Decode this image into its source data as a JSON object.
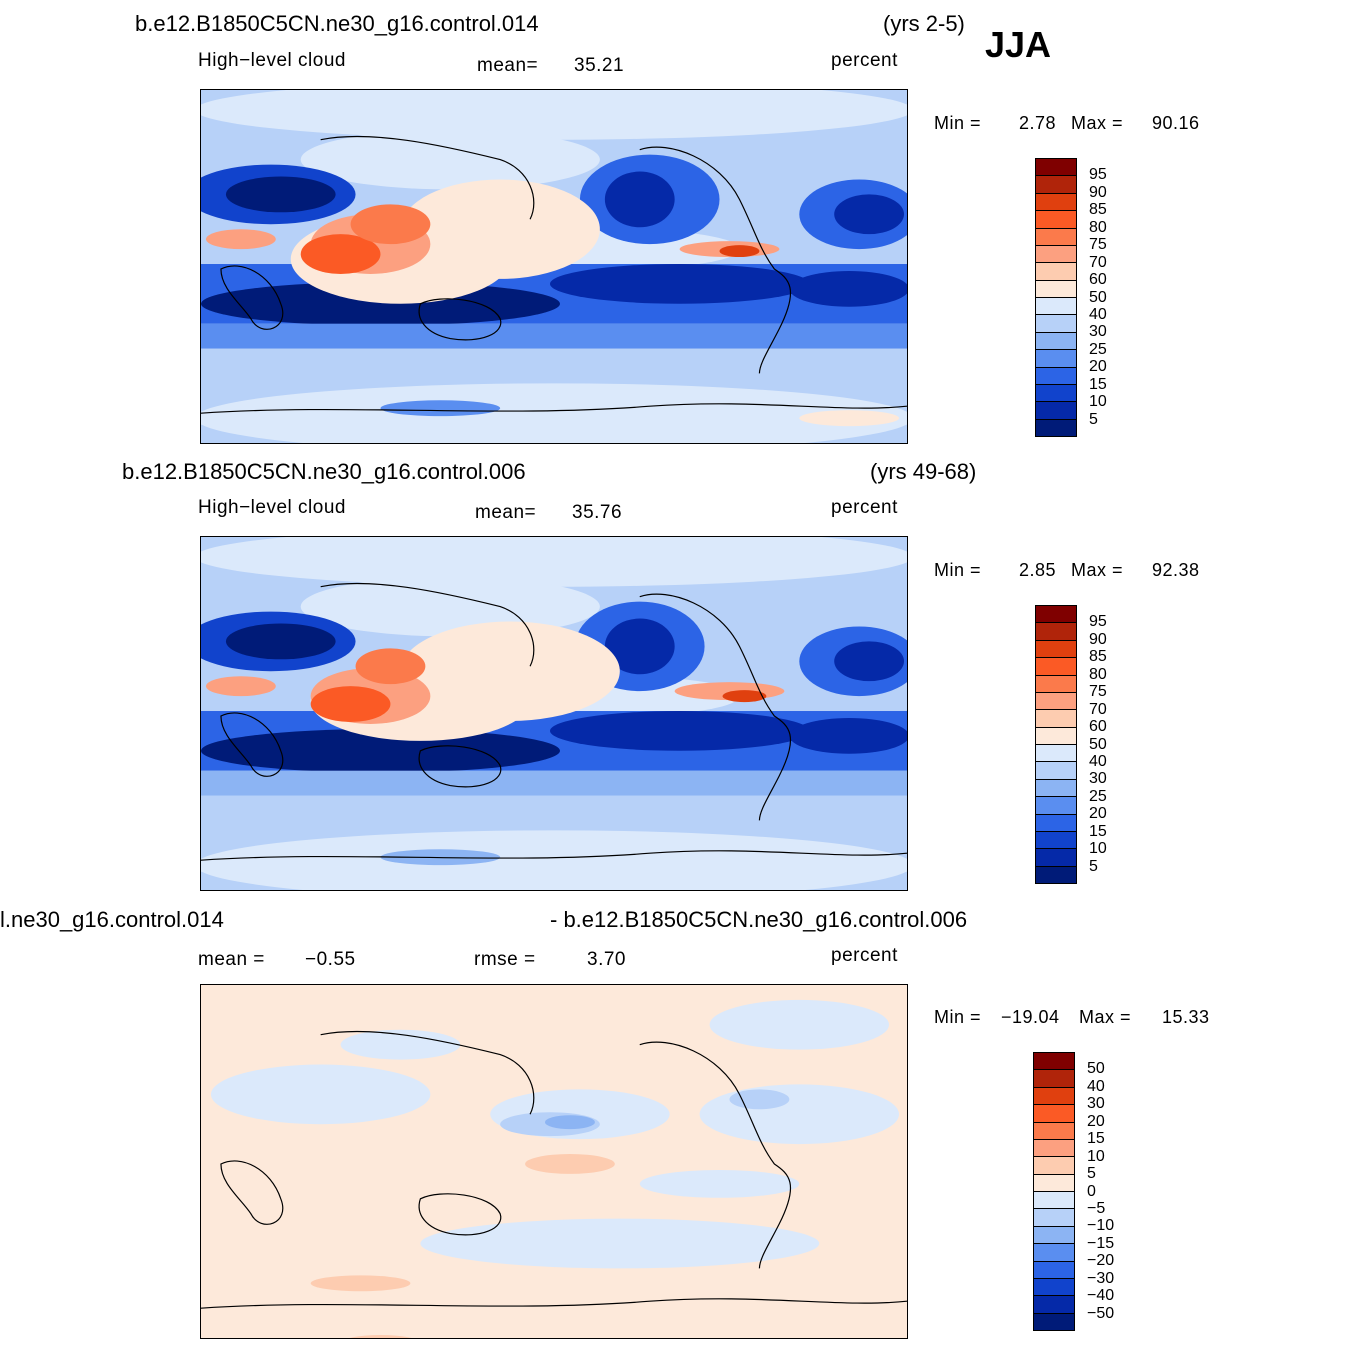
{
  "season": "JJA",
  "panels": [
    {
      "case": "b.e12.B1850C5CN.ne30_g16.control.014",
      "years": "(yrs 2-5)",
      "variable": "High−level cloud",
      "mean_label": "mean=",
      "mean": "35.21",
      "units": "percent",
      "min_label": "Min =",
      "min": "2.78",
      "max_label": "Max =",
      "max": "90.16",
      "colorbar_levels": [
        "95",
        "90",
        "85",
        "80",
        "75",
        "70",
        "60",
        "50",
        "40",
        "30",
        "25",
        "20",
        "15",
        "10",
        "5"
      ]
    },
    {
      "case": "b.e12.B1850C5CN.ne30_g16.control.006",
      "years": "(yrs 49-68)",
      "variable": "High−level cloud",
      "mean_label": "mean=",
      "mean": "35.76",
      "units": "percent",
      "min_label": "Min =",
      "min": "2.85",
      "max_label": "Max =",
      "max": "92.38",
      "colorbar_levels": [
        "95",
        "90",
        "85",
        "80",
        "75",
        "70",
        "60",
        "50",
        "40",
        "30",
        "25",
        "20",
        "15",
        "10",
        "5"
      ]
    },
    {
      "case_left": "l.ne30_g16.control.014",
      "case_right": "- b.e12.B1850C5CN.ne30_g16.control.006",
      "mean_label": "mean =",
      "mean": "−0.55",
      "rmse_label": "rmse =",
      "rmse": "3.70",
      "units": "percent",
      "min_label": "Min =",
      "min": "−19.04",
      "max_label": "Max =",
      "max": "15.33",
      "colorbar_levels": [
        "50",
        "40",
        "30",
        "20",
        "15",
        "10",
        "5",
        "0",
        "−5",
        "−10",
        "−15",
        "−20",
        "−30",
        "−40",
        "−50"
      ]
    }
  ],
  "colors": {
    "abs_scale": [
      "#7f0000",
      "#b0240a",
      "#e0400f",
      "#fb5a25",
      "#fb7a4b",
      "#fca080",
      "#fdccb0",
      "#fde9da",
      "#dbe9fb",
      "#b7d1f8",
      "#8cb4f3",
      "#5a8ef0",
      "#2c64e6",
      "#1143cc",
      "#0529a8",
      "#001b78"
    ],
    "diff_scale": [
      "#7f0000",
      "#b0240a",
      "#e0400f",
      "#fb5a25",
      "#fb7a4b",
      "#fca080",
      "#fdccb0",
      "#fde9da",
      "#dbe9fb",
      "#b7d1f8",
      "#8cb4f3",
      "#5a8ef0",
      "#2c64e6",
      "#1143cc",
      "#0529a8",
      "#001b78"
    ]
  },
  "chart_data": [
    {
      "type": "heatmap",
      "title": "b.e12.B1850C5CN.ne30_g16.control.014 (yrs 2-5) JJA",
      "variable": "High-level cloud",
      "units": "percent",
      "mean": 35.21,
      "min": 2.78,
      "max": 90.16,
      "levels": [
        5,
        10,
        15,
        20,
        25,
        30,
        40,
        50,
        60,
        70,
        75,
        80,
        85,
        90,
        95
      ]
    },
    {
      "type": "heatmap",
      "title": "b.e12.B1850C5CN.ne30_g16.control.006 (yrs 49-68)",
      "variable": "High-level cloud",
      "units": "percent",
      "mean": 35.76,
      "min": 2.85,
      "max": 92.38,
      "levels": [
        5,
        10,
        15,
        20,
        25,
        30,
        40,
        50,
        60,
        70,
        75,
        80,
        85,
        90,
        95
      ]
    },
    {
      "type": "heatmap",
      "title": "l.ne30_g16.control.014 - b.e12.B1850C5CN.ne30_g16.control.006",
      "units": "percent",
      "mean": -0.55,
      "rmse": 3.7,
      "min": -19.04,
      "max": 15.33,
      "levels": [
        -50,
        -40,
        -30,
        -20,
        -15,
        -10,
        -5,
        0,
        5,
        10,
        15,
        20,
        30,
        40,
        50
      ]
    }
  ]
}
